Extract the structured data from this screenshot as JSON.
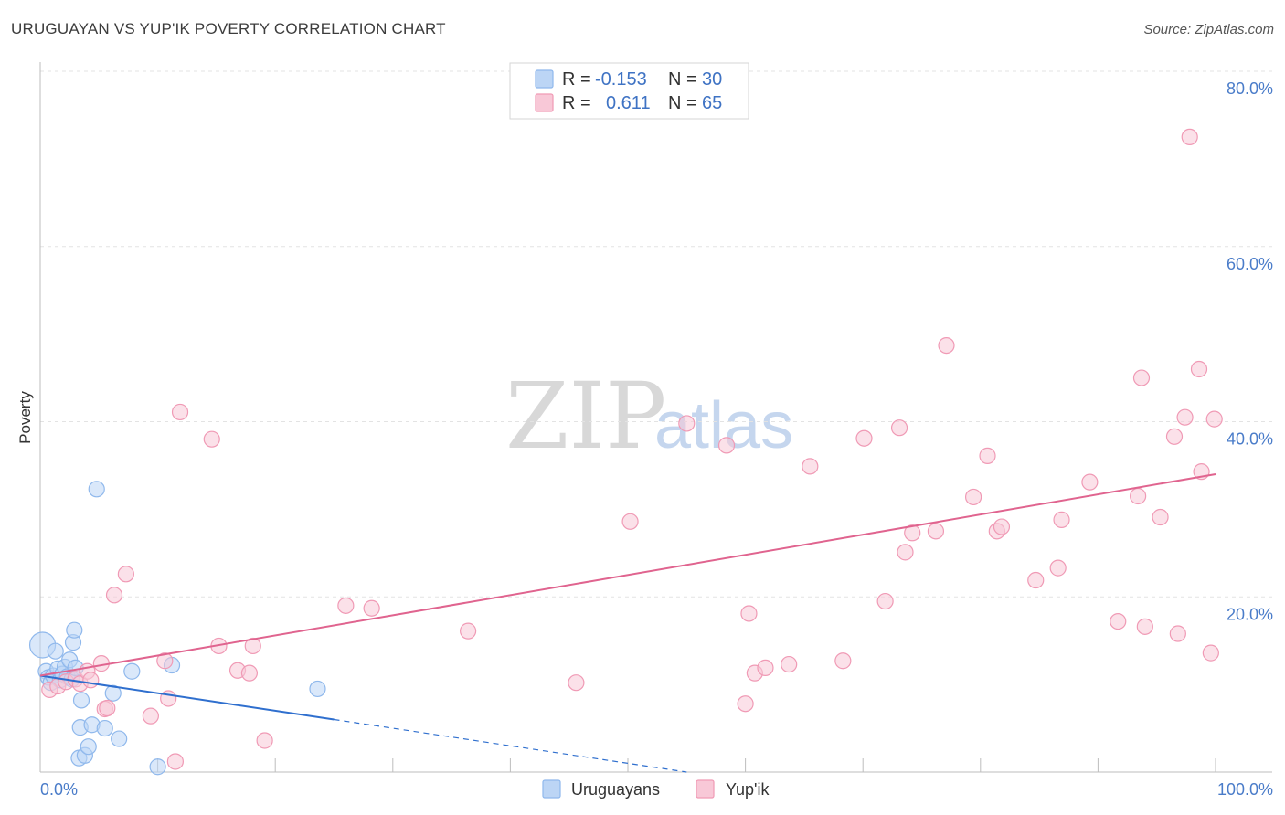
{
  "title": "URUGUAYAN VS YUP'IK POVERTY CORRELATION CHART",
  "source": "Source: ZipAtlas.com",
  "watermark": {
    "zip": "ZIP",
    "atlas": "atlas"
  },
  "colors": {
    "blue": "#8fb8ec",
    "blue_fill": "#bcd5f5",
    "blue_line": "#2f6fce",
    "pink": "#f09ab5",
    "pink_fill": "#f8c8d7",
    "pink_line": "#e0648f",
    "tick_text": "#4a7cc9",
    "grid": "#e3e3e3"
  },
  "legend": [
    {
      "label_r": "R =",
      "r": "-0.153",
      "label_n": "N =",
      "n": "30"
    },
    {
      "label_r": "R =",
      "r": "0.611",
      "label_n": "N =",
      "n": "65"
    }
  ],
  "chart_data": {
    "type": "scatter",
    "title": "URUGUAYAN VS YUP'IK POVERTY CORRELATION CHART",
    "xlabel": "",
    "ylabel": "Poverty",
    "xlim": [
      0,
      100
    ],
    "ylim": [
      0,
      80
    ],
    "x_tick_labels": [
      "0.0%",
      "100.0%"
    ],
    "y_ticks": [
      20,
      40,
      60,
      80
    ],
    "y_tick_labels": [
      "20.0%",
      "40.0%",
      "60.0%",
      "80.0%"
    ],
    "series": [
      {
        "name": "Uruguayans",
        "points": [
          [
            0.2,
            14.5
          ],
          [
            0.5,
            11.5
          ],
          [
            0.7,
            10.8
          ],
          [
            0.9,
            10.2
          ],
          [
            1.1,
            11.0
          ],
          [
            1.3,
            13.8
          ],
          [
            1.5,
            11.8
          ],
          [
            1.7,
            10.5
          ],
          [
            1.9,
            11.2
          ],
          [
            2.1,
            12.0
          ],
          [
            2.3,
            10.9
          ],
          [
            2.5,
            12.8
          ],
          [
            2.7,
            10.6
          ],
          [
            2.8,
            14.8
          ],
          [
            2.9,
            16.2
          ],
          [
            3.0,
            11.9
          ],
          [
            3.3,
            1.6
          ],
          [
            3.4,
            5.1
          ],
          [
            3.5,
            8.2
          ],
          [
            3.8,
            1.9
          ],
          [
            4.1,
            2.9
          ],
          [
            4.4,
            5.4
          ],
          [
            4.8,
            32.3
          ],
          [
            5.5,
            5.0
          ],
          [
            6.2,
            9.0
          ],
          [
            6.7,
            3.8
          ],
          [
            7.8,
            11.5
          ],
          [
            10.0,
            0.6
          ],
          [
            11.2,
            12.2
          ],
          [
            23.6,
            9.5
          ]
        ],
        "trend": {
          "x0": 0,
          "y0": 11.0,
          "x1": 25,
          "y1": 6.0,
          "dash_x1": 55,
          "dash_y1": 0
        }
      },
      {
        "name": "Yup'ik",
        "points": [
          [
            0.8,
            9.4
          ],
          [
            1.5,
            9.8
          ],
          [
            2.2,
            10.3
          ],
          [
            3.0,
            10.6
          ],
          [
            3.4,
            10.1
          ],
          [
            4.0,
            11.5
          ],
          [
            4.3,
            10.5
          ],
          [
            5.2,
            12.4
          ],
          [
            5.5,
            7.2
          ],
          [
            5.7,
            7.3
          ],
          [
            6.3,
            20.2
          ],
          [
            7.3,
            22.6
          ],
          [
            9.4,
            6.4
          ],
          [
            10.6,
            12.7
          ],
          [
            10.9,
            8.4
          ],
          [
            11.5,
            1.2
          ],
          [
            11.9,
            41.1
          ],
          [
            14.6,
            38.0
          ],
          [
            15.2,
            14.4
          ],
          [
            16.8,
            11.6
          ],
          [
            17.8,
            11.3
          ],
          [
            18.1,
            14.4
          ],
          [
            19.1,
            3.6
          ],
          [
            26.0,
            19.0
          ],
          [
            28.2,
            18.7
          ],
          [
            50.2,
            28.6
          ],
          [
            55.0,
            39.8
          ],
          [
            58.4,
            37.3
          ],
          [
            60.0,
            7.8
          ],
          [
            60.3,
            18.1
          ],
          [
            60.8,
            11.3
          ],
          [
            61.7,
            11.9
          ],
          [
            63.7,
            12.3
          ],
          [
            65.5,
            34.9
          ],
          [
            68.3,
            12.7
          ],
          [
            70.1,
            38.1
          ],
          [
            71.9,
            19.5
          ],
          [
            73.1,
            39.3
          ],
          [
            73.6,
            25.1
          ],
          [
            74.2,
            27.3
          ],
          [
            76.2,
            27.5
          ],
          [
            77.1,
            48.7
          ],
          [
            79.4,
            31.4
          ],
          [
            80.6,
            36.1
          ],
          [
            81.4,
            27.5
          ],
          [
            81.8,
            28.0
          ],
          [
            84.7,
            21.9
          ],
          [
            86.6,
            23.3
          ],
          [
            86.9,
            28.8
          ],
          [
            89.3,
            33.1
          ],
          [
            91.7,
            17.2
          ],
          [
            93.4,
            31.5
          ],
          [
            93.7,
            45.0
          ],
          [
            94.0,
            16.6
          ],
          [
            95.3,
            29.1
          ],
          [
            96.5,
            38.3
          ],
          [
            96.8,
            15.8
          ],
          [
            97.4,
            40.5
          ],
          [
            97.8,
            72.5
          ],
          [
            98.6,
            46.0
          ],
          [
            98.8,
            34.3
          ],
          [
            99.6,
            13.6
          ],
          [
            99.9,
            40.3
          ],
          [
            36.4,
            16.1
          ],
          [
            45.6,
            10.2
          ]
        ],
        "trend": {
          "x0": 0,
          "y0": 11.0,
          "x1": 100,
          "y1": 34.0
        }
      }
    ],
    "bottom_legend": [
      "Uruguayans",
      "Yup'ik"
    ]
  }
}
